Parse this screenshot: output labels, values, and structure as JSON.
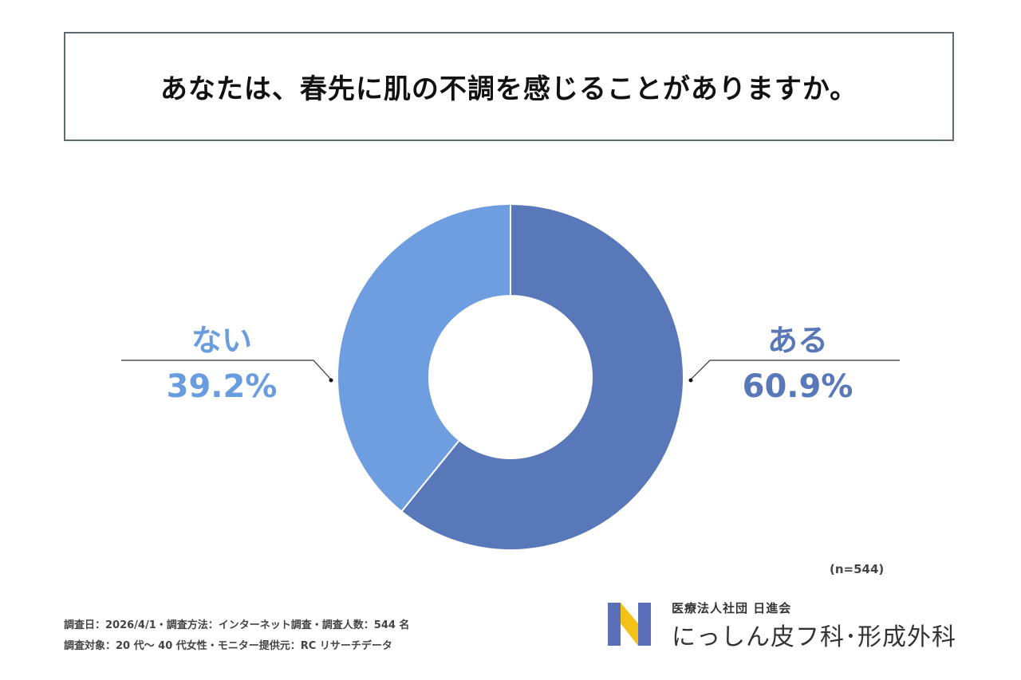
{
  "title": "あなたは、春先に肌の不調を感じることがありますか。",
  "colors": {
    "aru": "#5878b9",
    "nai": "#6f9ee0",
    "line": "#333333"
  },
  "chart_data": {
    "type": "pie",
    "donut": true,
    "title": "あなたは、春先に肌の不調を感じることがありますか。",
    "slices": [
      {
        "label": "ある",
        "value": 60.9,
        "display": "60.9%"
      },
      {
        "label": "ない",
        "value": 39.2,
        "display": "39.2%"
      }
    ]
  },
  "sample": "(n=544)",
  "footnotes": [
    "調査日：2026/4/1・調査方法：インターネット調査・調査人数：544 名",
    "調査対象：20 代～ 40 代女性・モニター提供元：RC リサーチデータ"
  ],
  "logo": {
    "org": "医療法人社団 日進会",
    "name": "にっしん皮フ科･形成外科"
  }
}
